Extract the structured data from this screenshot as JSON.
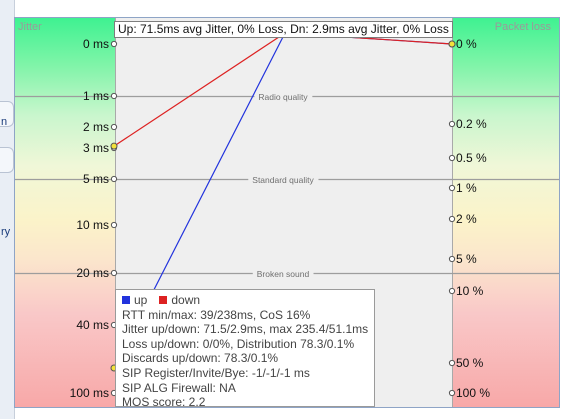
{
  "title": "Up: 71.5ms avg Jitter, 0% Loss, Dn: 2.9ms avg Jitter, 0% Loss",
  "left_panel_fragments": [
    "n",
    "ry"
  ],
  "chart_data": {
    "type": "line",
    "left_axis": {
      "label": "Jitter",
      "ticks": [
        {
          "label": "0 ms",
          "value": 0
        },
        {
          "label": "1 ms",
          "value": 1
        },
        {
          "label": "2 ms",
          "value": 2
        },
        {
          "label": "3 ms",
          "value": 3
        },
        {
          "label": "5 ms",
          "value": 5
        },
        {
          "label": "10 ms",
          "value": 10
        },
        {
          "label": "20 ms",
          "value": 20
        },
        {
          "label": "40 ms",
          "value": 40
        },
        {
          "label": "100 ms",
          "value": 100
        }
      ]
    },
    "right_axis": {
      "label": "Packet loss",
      "ticks": [
        {
          "label": "0 %",
          "value": 0
        },
        {
          "label": "0.2 %",
          "value": 0.2
        },
        {
          "label": "0.5 %",
          "value": 0.5
        },
        {
          "label": "1 %",
          "value": 1
        },
        {
          "label": "2 %",
          "value": 2
        },
        {
          "label": "5 %",
          "value": 5
        },
        {
          "label": "10 %",
          "value": 10
        },
        {
          "label": "50 %",
          "value": 50
        },
        {
          "label": "100 %",
          "value": 100
        }
      ]
    },
    "quality_bands": [
      {
        "label": "Radio quality",
        "jitter_ms": 1
      },
      {
        "label": "Standard quality",
        "jitter_ms": 5
      },
      {
        "label": "Broken sound",
        "jitter_ms": 20
      }
    ],
    "series": [
      {
        "name": "up",
        "color": "#2233dd",
        "jitter_ms": 71.5,
        "loss_pct": 0
      },
      {
        "name": "down",
        "color": "#dd2222",
        "jitter_ms": 2.9,
        "loss_pct": 0
      }
    ],
    "legend_position": "bottom-left"
  },
  "tooltip": {
    "legend": [
      {
        "label": "up",
        "color": "#2233dd"
      },
      {
        "label": "down",
        "color": "#dd2222"
      }
    ],
    "lines": [
      "RTT min/max: 39/238ms, CoS 16%",
      "Jitter up/down: 71.5/2.9ms, max 235.4/51.1ms",
      "Loss up/down: 0/0%, Distribution 78.3/0.1%",
      "Discards up/down: 78.3/0.1%",
      "SIP Register/Invite/Bye: -1/-1/-1 ms",
      "SIP ALG Firewall: NA",
      "MOS score: 2.2"
    ]
  }
}
